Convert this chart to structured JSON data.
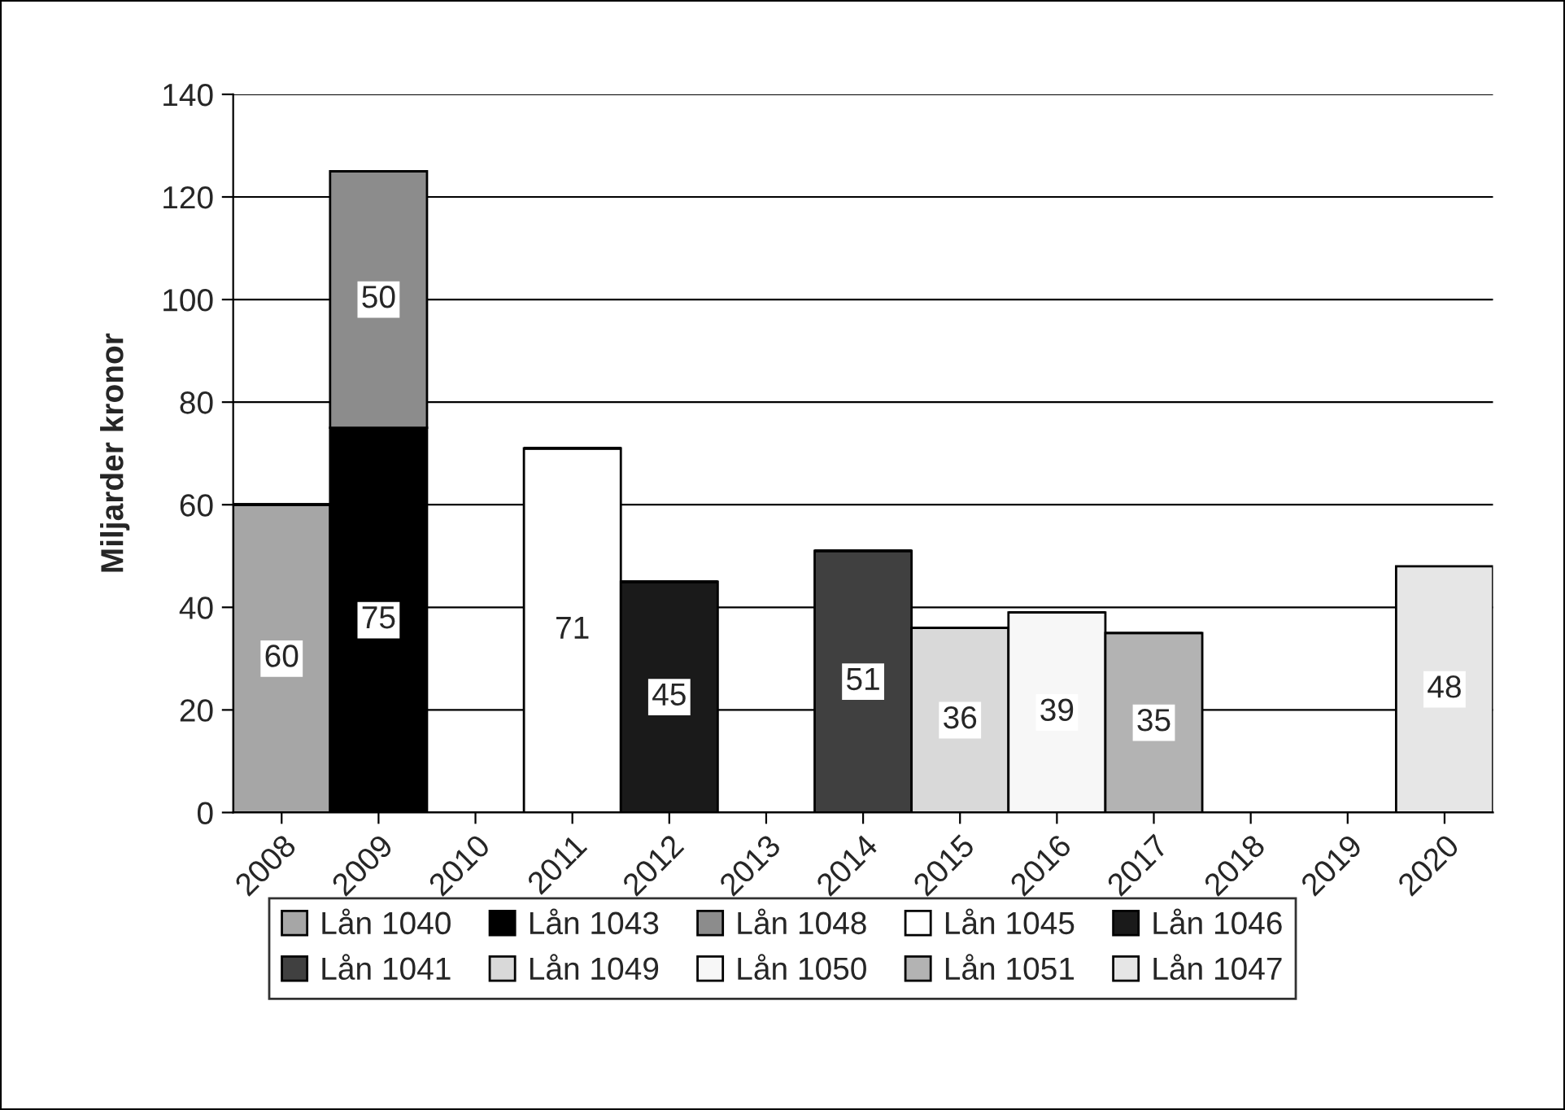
{
  "chart_data": {
    "type": "bar",
    "stacked": true,
    "ylabel": "Miljarder kronor",
    "categories": [
      "2008",
      "2009",
      "2010",
      "2011",
      "2012",
      "2013",
      "2014",
      "2015",
      "2016",
      "2017",
      "2018",
      "2019",
      "2020"
    ],
    "series": [
      {
        "name": "Lån 1040",
        "color": "#a6a6a6",
        "values": [
          60,
          null,
          null,
          null,
          null,
          null,
          null,
          null,
          null,
          null,
          null,
          null,
          null
        ]
      },
      {
        "name": "Lån 1043",
        "color": "#000000",
        "values": [
          null,
          75,
          null,
          null,
          null,
          null,
          null,
          null,
          null,
          null,
          null,
          null,
          null
        ]
      },
      {
        "name": "Lån 1048",
        "color": "#8c8c8c",
        "values": [
          null,
          50,
          null,
          null,
          null,
          null,
          null,
          null,
          null,
          null,
          null,
          null,
          null
        ]
      },
      {
        "name": "Lån 1045",
        "color": "#ffffff",
        "values": [
          null,
          null,
          null,
          71,
          null,
          null,
          null,
          null,
          null,
          null,
          null,
          null,
          null
        ]
      },
      {
        "name": "Lån 1046",
        "color": "#1a1a1a",
        "values": [
          null,
          null,
          null,
          null,
          45,
          null,
          null,
          null,
          null,
          null,
          null,
          null,
          null
        ]
      },
      {
        "name": "Lån 1041",
        "color": "#404040",
        "values": [
          null,
          null,
          null,
          null,
          null,
          null,
          51,
          null,
          null,
          null,
          null,
          null,
          null
        ]
      },
      {
        "name": "Lån 1049",
        "color": "#d9d9d9",
        "values": [
          null,
          null,
          null,
          null,
          null,
          null,
          null,
          36,
          null,
          null,
          null,
          null,
          null
        ]
      },
      {
        "name": "Lån 1050",
        "color": "#f7f7f7",
        "values": [
          null,
          null,
          null,
          null,
          null,
          null,
          null,
          null,
          39,
          null,
          null,
          null,
          null
        ]
      },
      {
        "name": "Lån 1051",
        "color": "#b3b3b3",
        "values": [
          null,
          null,
          null,
          null,
          null,
          null,
          null,
          null,
          null,
          35,
          null,
          null,
          null
        ]
      },
      {
        "name": "Lån 1047",
        "color": "#e6e6e6",
        "values": [
          null,
          null,
          null,
          null,
          null,
          null,
          null,
          null,
          null,
          null,
          null,
          null,
          48
        ]
      }
    ],
    "ylim": [
      0,
      140
    ],
    "yticks": [
      0,
      20,
      40,
      60,
      80,
      100,
      120,
      140
    ],
    "grid": "y",
    "legend": "bottom",
    "data_labels": true
  }
}
